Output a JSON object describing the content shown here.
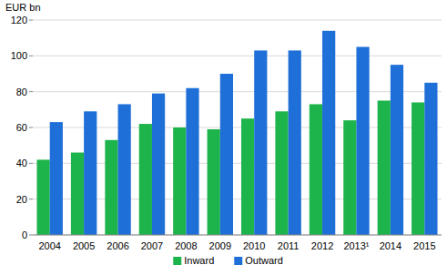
{
  "chart_data": {
    "type": "bar",
    "y_label": "EUR bn",
    "categories": [
      "2004",
      "2005",
      "2006",
      "2007",
      "2008",
      "2009",
      "2010",
      "2011",
      "2012",
      "2013¹",
      "2014",
      "2015"
    ],
    "series": [
      {
        "name": "Inward",
        "color": "#1db44b",
        "values": [
          42,
          46,
          53,
          62,
          60,
          59,
          65,
          69,
          73,
          64,
          75,
          74
        ]
      },
      {
        "name": "Outward",
        "color": "#1f6fd8",
        "values": [
          63,
          69,
          73,
          79,
          82,
          90,
          103,
          103,
          114,
          105,
          95,
          85
        ]
      }
    ],
    "ylim": [
      0,
      120
    ],
    "yticks": [
      0,
      20,
      40,
      60,
      80,
      100,
      120
    ],
    "grid": true,
    "legend": "bottom"
  }
}
